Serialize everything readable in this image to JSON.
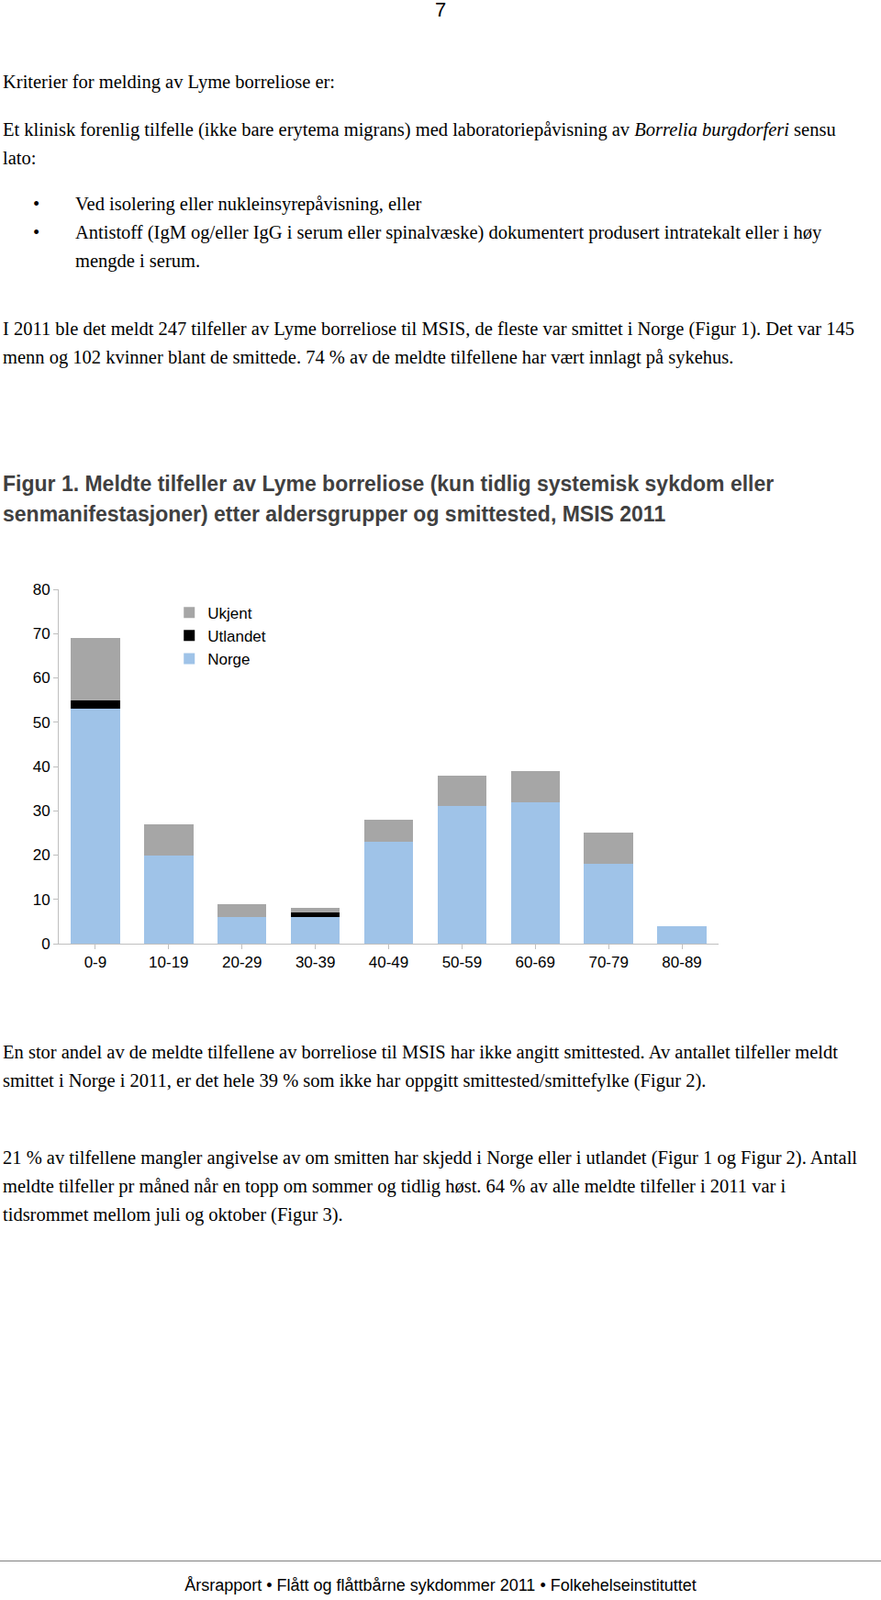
{
  "page_number": "7",
  "heading": "Kriterier for melding av Lyme borreliose er:",
  "criteria": [
    {
      "text": "Et klinisk forenlig tilfelle (ikke bare erytema migrans) med laboratoriepåvisning av "
    },
    {
      "text": "Borrelia burgdorferi",
      "italic": true
    },
    {
      "text": " sensu lato:"
    }
  ],
  "bullets": [
    "Ved isolering eller nukleinsyrepåvisning, eller",
    "Antistoff (IgM og/eller IgG i serum eller spinalvæske) dokumentert produsert intratekalt eller i høy mengde i serum."
  ],
  "summary": "I 2011 ble det meldt 247 tilfeller av Lyme borreliose til MSIS, de fleste var smittet i Norge (Figur 1). Det var 145 menn og 102 kvinner blant de smittede. 74 % av de meldte tilfellene har vært innlagt på sykehus.",
  "chart_data": {
    "type": "bar",
    "title": "Figur 1. Meldte tilfeller av Lyme borreliose (kun tidlig systemisk sykdom eller senmanifestasjoner) etter aldersgrupper og smittested, MSIS 2011",
    "categories": [
      "0-9",
      "10-19",
      "20-29",
      "30-39",
      "40-49",
      "50-59",
      "60-69",
      "70-79",
      "80-89"
    ],
    "series": [
      {
        "name": "Norge",
        "color": "#9fc3e8",
        "values": [
          53,
          20,
          6,
          6,
          23,
          31,
          32,
          18,
          4
        ]
      },
      {
        "name": "Utlandet",
        "color": "#000000",
        "values": [
          2,
          0,
          0,
          1,
          0,
          0,
          0,
          0,
          0
        ]
      },
      {
        "name": "Ukjent",
        "color": "#a6a6a6",
        "values": [
          14,
          7,
          3,
          1,
          5,
          7,
          7,
          7,
          0
        ]
      }
    ],
    "stacked": true,
    "ylim": [
      0,
      80
    ],
    "yticks": [
      0,
      10,
      20,
      30,
      40,
      50,
      60,
      70,
      80
    ],
    "grid": false,
    "legend": "upper left"
  },
  "after": [
    "En stor andel av de meldte tilfellene av borreliose til MSIS har ikke angitt smittested. Av antallet tilfeller meldt smittet i Norge i 2011, er det hele 39 % som ikke har oppgitt smittested/smittefylke (Figur 2).",
    "21 % av tilfellene mangler angivelse av om smitten har skjedd i Norge eller i utlandet (Figur 1 og Figur 2). Antall meldte tilfeller pr måned når en topp om sommer og tidlig høst. 64 % av alle meldte tilfeller i 2011 var i tidsrommet mellom juli og oktober (Figur 3)."
  ],
  "footer": "Årsrapport • Flått og flåttbårne sykdommer 2011 • Folkehelseinstituttet"
}
